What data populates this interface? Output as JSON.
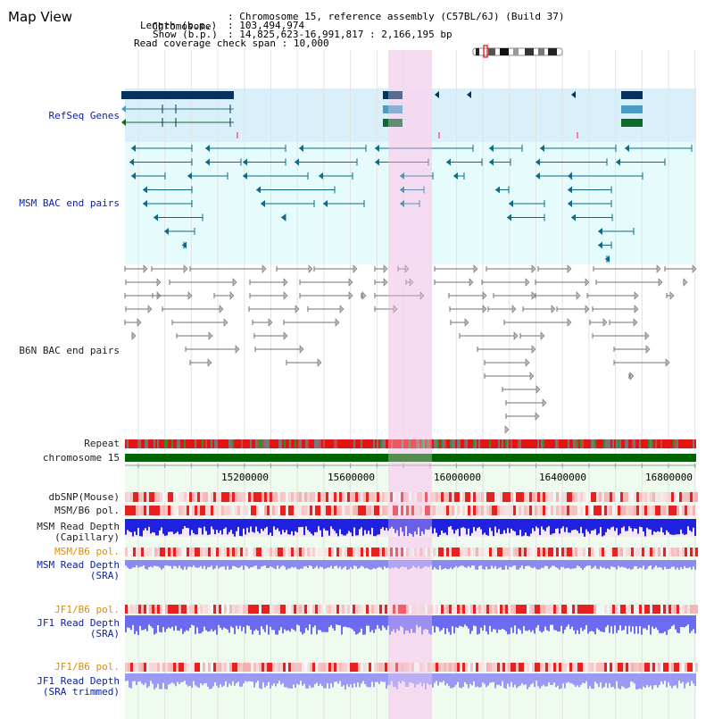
{
  "header": {
    "title": "Map View",
    "chromosome_label": "Chromosome",
    "chromosome_value": "Chromosome 15, reference assembly (C57BL/6J) (Build 37)",
    "length_label": "Length (b.p.)",
    "length_value": "103,494,974",
    "show_label": "Show (b.p.)",
    "show_value": "14,825,623-16,991,817 : 2,166,195 bp",
    "read_span_label": "Read coverage check span",
    "read_span_value": "10,000"
  },
  "tracks": {
    "refseq": "RefSeq Genes",
    "msm_bac": "MSM BAC end pairs",
    "b6n_bac": "B6N BAC end pairs",
    "repeat": "Repeat",
    "chromosome": "chromosome 15",
    "dbsnp": "dbSNP(Mouse)",
    "msm_pol": "MSM/B6 pol.",
    "msm_depth_cap_1": "MSM Read Depth",
    "msm_depth_cap_2": "(Capillary)",
    "msm_pol_sra": "MSM/B6 pol.",
    "msm_depth_sra_1": "MSM Read Depth",
    "msm_depth_sra_2": "(SRA)",
    "jf1_pol": "JF1/B6 pol.",
    "jf1_depth_1": "JF1 Read Depth",
    "jf1_depth_2": "(SRA)",
    "jf1_pol_trim": "JF1/B6 pol.",
    "jf1_depth_trim_1": "JF1 Read Depth",
    "jf1_depth_trim_2": "(SRA trimmed)"
  },
  "axis": {
    "ticks": [
      "15200000",
      "15600000",
      "16000000",
      "16400000",
      "16800000"
    ]
  },
  "colors": {
    "highlight": "#f7d8f0",
    "refseq_bg": "#d9f0fb",
    "bac_bg": "#e6fbfb",
    "depth_bg": "#eefbee",
    "msm_feature": "#0f6a8a",
    "b6n_feature": "#707070",
    "label_blue": "#0b22a8",
    "label_orange": "#e48b00",
    "chromosome_green": "#006400"
  }
}
